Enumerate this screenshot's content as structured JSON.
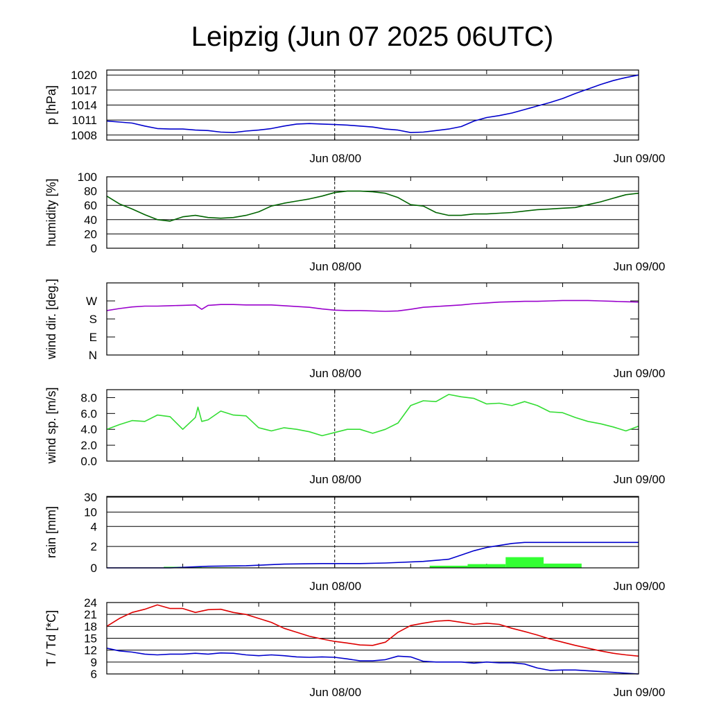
{
  "title": "Leipzig (Jun 07 2025 06UTC)",
  "colors": {
    "pressure": "#0000cc",
    "humidity": "#006400",
    "wind_dir": "#9900cc",
    "wind_speed": "#33dd33",
    "rain_bars": "#33ff33",
    "rain_accum": "#0000cc",
    "temperature": "#dd0000",
    "dewpoint": "#0000cc",
    "grid": "#000000"
  },
  "chart_data": [
    {
      "type": "line",
      "id": "pressure",
      "ylabel": "p [hPa]",
      "ylim": [
        1007,
        1021
      ],
      "yticks": [
        1008,
        1011,
        1014,
        1017,
        1020
      ],
      "ytick_labels": [
        "1008",
        "1011",
        "1014",
        "1017",
        "1020"
      ],
      "xlim": [
        -18,
        24
      ],
      "xtick_labels": [
        {
          "x": 0,
          "label": "Jun 08/00"
        },
        {
          "x": 24,
          "label": "Jun 09/00"
        }
      ],
      "grid": "horizontal",
      "series": [
        {
          "color_key": "pressure",
          "x": [
            -18,
            -17,
            -16,
            -15,
            -14,
            -13,
            -12,
            -11,
            -10,
            -9,
            -8,
            -7,
            -6,
            -5,
            -4,
            -3,
            -2,
            -1,
            0,
            1,
            2,
            3,
            4,
            5,
            6,
            7,
            8,
            9,
            10,
            11,
            12,
            13,
            14,
            15,
            16,
            17,
            18,
            19,
            20,
            21,
            22,
            23,
            24
          ],
          "y": [
            1010.8,
            1010.6,
            1010.4,
            1009.8,
            1009.3,
            1009.2,
            1009.2,
            1009.0,
            1008.9,
            1008.6,
            1008.5,
            1008.8,
            1009.0,
            1009.3,
            1009.8,
            1010.2,
            1010.3,
            1010.2,
            1010.1,
            1010.0,
            1009.8,
            1009.6,
            1009.2,
            1009.0,
            1008.5,
            1008.6,
            1008.9,
            1009.2,
            1009.7,
            1010.8,
            1011.5,
            1011.9,
            1012.4,
            1013.1,
            1013.8,
            1014.5,
            1015.3,
            1016.3,
            1017.2,
            1018.1,
            1018.9,
            1019.5,
            1020.0
          ]
        }
      ]
    },
    {
      "type": "line",
      "id": "humidity",
      "ylabel": "humidity [%]",
      "ylim": [
        0,
        100
      ],
      "yticks": [
        0,
        20,
        40,
        60,
        80,
        100
      ],
      "ytick_labels": [
        "0",
        "20",
        "40",
        "60",
        "80",
        "100"
      ],
      "xlim": [
        -18,
        24
      ],
      "xtick_labels": [
        {
          "x": 0,
          "label": "Jun 08/00"
        },
        {
          "x": 24,
          "label": "Jun 09/00"
        }
      ],
      "grid": "horizontal",
      "series": [
        {
          "color_key": "humidity",
          "x": [
            -18,
            -17,
            -16,
            -15,
            -14,
            -13,
            -12,
            -11,
            -10,
            -9,
            -8,
            -7,
            -6,
            -5,
            -4,
            -3,
            -2,
            -1,
            0,
            1,
            2,
            3,
            4,
            5,
            6,
            7,
            8,
            9,
            10,
            11,
            12,
            13,
            14,
            15,
            16,
            17,
            18,
            19,
            20,
            21,
            22,
            23,
            24
          ],
          "y": [
            73,
            62,
            55,
            47,
            40,
            38,
            44,
            46,
            43,
            42,
            43,
            46,
            51,
            59,
            63,
            66,
            69,
            73,
            78,
            80,
            80,
            79,
            77,
            71,
            61,
            59,
            50,
            46,
            46,
            48,
            48,
            49,
            50,
            52,
            54,
            55,
            56,
            57,
            61,
            65,
            70,
            75,
            77
          ]
        }
      ]
    },
    {
      "type": "line",
      "id": "wind_dir",
      "ylabel": "wind dir. [deg.]",
      "ylim": [
        0,
        360
      ],
      "yticks": [
        0,
        90,
        180,
        270
      ],
      "ytick_labels": [
        "N",
        "E",
        "S",
        "W"
      ],
      "xlim": [
        -18,
        24
      ],
      "xtick_labels": [
        {
          "x": 0,
          "label": "Jun 08/00"
        },
        {
          "x": 24,
          "label": "Jun 09/00"
        }
      ],
      "grid": "none",
      "series": [
        {
          "color_key": "wind_dir",
          "x": [
            -18,
            -17,
            -16,
            -15,
            -14,
            -13,
            -12,
            -11,
            -10.5,
            -10,
            -9,
            -8,
            -7,
            -6,
            -5,
            -4,
            -3,
            -2,
            -1,
            0,
            1,
            2,
            3,
            4,
            5,
            6,
            7,
            8,
            9,
            10,
            11,
            12,
            13,
            14,
            15,
            16,
            17,
            18,
            19,
            20,
            21,
            22,
            23,
            24
          ],
          "y": [
            222,
            232,
            240,
            244,
            244,
            246,
            248,
            250,
            228,
            248,
            252,
            252,
            250,
            250,
            250,
            246,
            242,
            238,
            230,
            224,
            222,
            222,
            220,
            218,
            220,
            228,
            238,
            242,
            246,
            250,
            256,
            260,
            264,
            266,
            268,
            268,
            270,
            272,
            272,
            272,
            270,
            268,
            266,
            264
          ]
        }
      ]
    },
    {
      "type": "line",
      "id": "wind_speed",
      "ylabel": "wind sp. [m/s]",
      "ylim": [
        0,
        9
      ],
      "yticks": [
        0,
        2,
        4,
        6,
        8
      ],
      "ytick_labels": [
        "0.0",
        "2.0",
        "4.0",
        "6.0",
        "8.0"
      ],
      "xlim": [
        -18,
        24
      ],
      "xtick_labels": [
        {
          "x": 0,
          "label": "Jun 08/00"
        },
        {
          "x": 24,
          "label": "Jun 09/00"
        }
      ],
      "grid": "none",
      "series": [
        {
          "color_key": "wind_speed",
          "x": [
            -18,
            -17,
            -16,
            -15,
            -14,
            -13,
            -12,
            -11,
            -10.8,
            -10.5,
            -10,
            -9,
            -8,
            -7,
            -6,
            -5,
            -4,
            -3,
            -2,
            -1,
            0,
            1,
            2,
            3,
            4,
            5,
            6,
            7,
            8,
            9,
            10,
            11,
            12,
            13,
            14,
            15,
            16,
            17,
            18,
            19,
            20,
            21,
            22,
            23,
            24
          ],
          "y": [
            4.0,
            4.6,
            5.1,
            5.0,
            5.8,
            5.6,
            4.0,
            5.5,
            6.8,
            5.0,
            5.2,
            6.3,
            5.8,
            5.7,
            4.2,
            3.8,
            4.2,
            4.0,
            3.7,
            3.2,
            3.6,
            4.0,
            4.0,
            3.5,
            4.0,
            4.8,
            7.0,
            7.6,
            7.5,
            8.4,
            8.1,
            7.9,
            7.2,
            7.3,
            7.0,
            7.5,
            7.0,
            6.2,
            6.1,
            5.5,
            5.0,
            4.7,
            4.3,
            3.8,
            4.4
          ]
        }
      ]
    },
    {
      "type": "bar+line",
      "id": "rain",
      "ylabel": "rain [mm]",
      "ylim": [
        0,
        30
      ],
      "scale": "nonlinear",
      "yticks": [
        0,
        2,
        4,
        10,
        30
      ],
      "ytick_labels": [
        "0",
        "2",
        "4",
        "10",
        "30"
      ],
      "xlim": [
        -18,
        24
      ],
      "xtick_labels": [
        {
          "x": 0,
          "label": "Jun 08/00"
        },
        {
          "x": 24,
          "label": "Jun 09/00"
        }
      ],
      "grid": "horizontal",
      "bars": {
        "color_key": "rain_bars",
        "bin_width_hours": 3,
        "x_start": [
          -13.5,
          -10.5,
          -7.5,
          -4.5,
          -1.5,
          1.5,
          4.5,
          7.5,
          10.5,
          13.5,
          16.5,
          19.5
        ],
        "values": [
          0.1,
          0.05,
          0,
          0,
          0,
          0,
          0,
          0.2,
          0.35,
          1.0,
          0.4,
          0
        ]
      },
      "series": [
        {
          "color_key": "rain_accum",
          "x": [
            -18,
            -13,
            -10,
            -7,
            -4,
            -1,
            0,
            2,
            4,
            7,
            9,
            10,
            11,
            12,
            13,
            14,
            15,
            16,
            18,
            20,
            22,
            24
          ],
          "y": [
            0,
            0,
            0.15,
            0.2,
            0.35,
            0.4,
            0.4,
            0.4,
            0.45,
            0.6,
            0.8,
            1.2,
            1.6,
            1.9,
            2.1,
            2.3,
            2.4,
            2.4,
            2.4,
            2.4,
            2.4,
            2.4
          ]
        }
      ]
    },
    {
      "type": "line",
      "id": "temperature",
      "ylabel": "T / Td [*C]",
      "ylim": [
        6,
        24
      ],
      "yticks": [
        6,
        9,
        12,
        15,
        18,
        21,
        24
      ],
      "ytick_labels": [
        "6",
        "9",
        "12",
        "15",
        "18",
        "21",
        "24"
      ],
      "xlim": [
        -18,
        24
      ],
      "xtick_labels": [
        {
          "x": 0,
          "label": "Jun 08/00"
        },
        {
          "x": 24,
          "label": "Jun 09/00"
        }
      ],
      "grid": "horizontal",
      "series": [
        {
          "color_key": "temperature",
          "x": [
            -18,
            -17,
            -16,
            -15,
            -14,
            -13,
            -12,
            -11,
            -10,
            -9,
            -8,
            -7,
            -6,
            -5,
            -4,
            -3,
            -2,
            -1,
            0,
            1,
            2,
            3,
            4,
            5,
            6,
            7,
            8,
            9,
            10,
            11,
            12,
            13,
            14,
            15,
            16,
            17,
            18,
            19,
            20,
            21,
            22,
            23,
            24
          ],
          "y": [
            18.0,
            20.0,
            21.5,
            22.3,
            23.4,
            22.5,
            22.5,
            21.5,
            22.2,
            22.3,
            21.5,
            21.0,
            20.0,
            19.0,
            17.5,
            16.5,
            15.5,
            14.8,
            14.2,
            13.8,
            13.3,
            13.2,
            14.0,
            16.5,
            18.2,
            18.8,
            19.3,
            19.5,
            19.0,
            18.5,
            18.8,
            18.5,
            17.5,
            16.7,
            15.8,
            14.8,
            14.0,
            13.2,
            12.5,
            11.8,
            11.2,
            10.8,
            10.5
          ]
        },
        {
          "color_key": "dewpoint",
          "x": [
            -18,
            -17,
            -16,
            -15,
            -14,
            -13,
            -12,
            -11,
            -10,
            -9,
            -8,
            -7,
            -6,
            -5,
            -4,
            -3,
            -2,
            -1,
            0,
            1,
            2,
            3,
            4,
            5,
            6,
            7,
            8,
            9,
            10,
            11,
            12,
            13,
            14,
            15,
            16,
            17,
            18,
            19,
            20,
            21,
            22,
            23,
            24
          ],
          "y": [
            12.5,
            11.8,
            11.5,
            11.0,
            10.8,
            11.0,
            11.0,
            11.2,
            11.0,
            11.3,
            11.2,
            10.8,
            10.6,
            10.8,
            10.6,
            10.3,
            10.2,
            10.3,
            10.2,
            9.8,
            9.3,
            9.3,
            9.6,
            10.5,
            10.3,
            9.2,
            9.0,
            9.0,
            9.0,
            8.7,
            9.0,
            8.8,
            8.8,
            8.5,
            7.5,
            6.9,
            7.0,
            7.0,
            6.8,
            6.6,
            6.4,
            6.2,
            6.0
          ]
        }
      ]
    }
  ]
}
